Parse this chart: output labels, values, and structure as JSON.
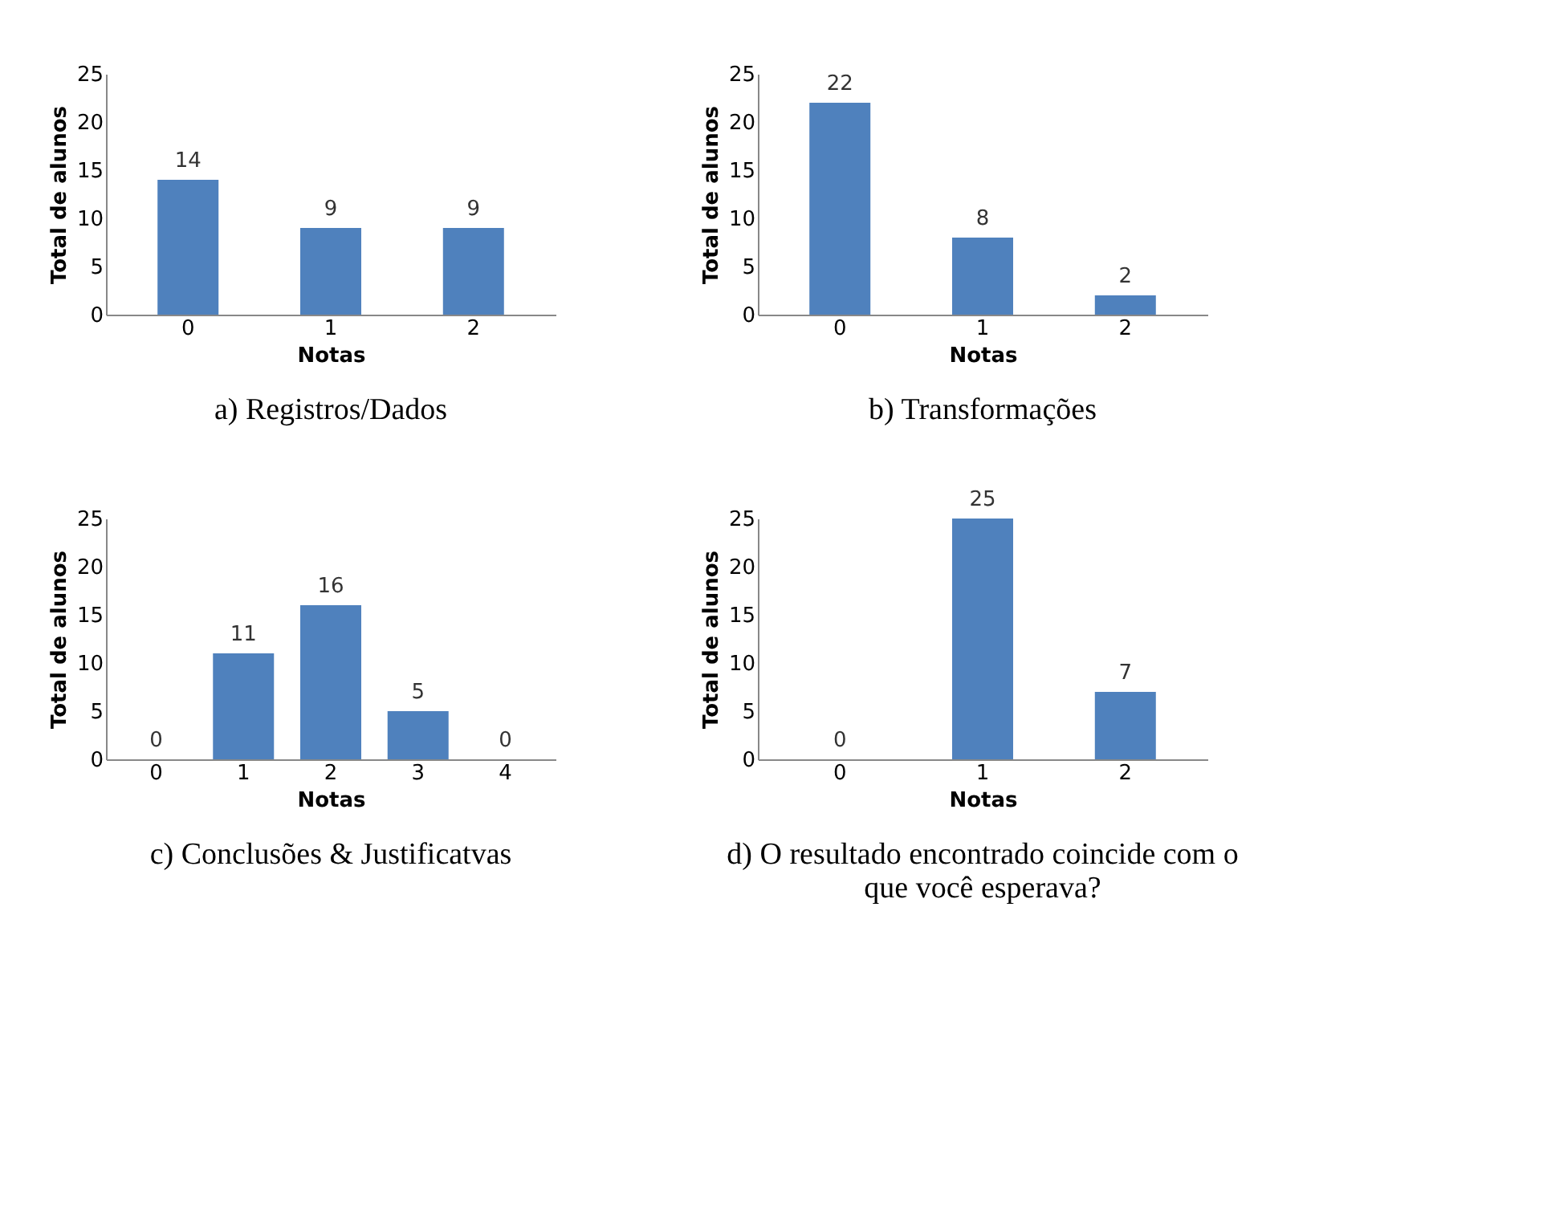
{
  "chart_data": [
    {
      "type": "bar",
      "title": "a) Registros/Dados",
      "xlabel": "Notas",
      "ylabel": "Total de alunos",
      "categories": [
        "0",
        "1",
        "2"
      ],
      "values": [
        14,
        9,
        9
      ],
      "color": "#4f81bd",
      "ylim": [
        0,
        25
      ],
      "yticks": [
        0,
        5,
        10,
        15,
        20,
        25
      ],
      "data_labels": true
    },
    {
      "type": "bar",
      "title": "b) Transformações",
      "xlabel": "Notas",
      "ylabel": "Total de alunos",
      "categories": [
        "0",
        "1",
        "2"
      ],
      "values": [
        22,
        8,
        2
      ],
      "color": "#4f81bd",
      "ylim": [
        0,
        25
      ],
      "yticks": [
        0,
        5,
        10,
        15,
        20,
        25
      ],
      "data_labels": true
    },
    {
      "type": "bar",
      "title": "c) Conclusões & Justificatvas",
      "xlabel": "Notas",
      "ylabel": "Total de alunos",
      "categories": [
        "0",
        "1",
        "2",
        "3",
        "4"
      ],
      "values": [
        0,
        11,
        16,
        5,
        0
      ],
      "color": "#4f81bd",
      "ylim": [
        0,
        25
      ],
      "yticks": [
        0,
        5,
        10,
        15,
        20,
        25
      ],
      "data_labels": true
    },
    {
      "type": "bar",
      "title": "d) O resultado encontrado coincide com o que você esperava?",
      "xlabel": "Notas",
      "ylabel": "Total de alunos",
      "categories": [
        "0",
        "1",
        "2"
      ],
      "values": [
        0,
        25,
        7
      ],
      "color": "#4f81bd",
      "ylim": [
        0,
        25
      ],
      "yticks": [
        0,
        5,
        10,
        15,
        20,
        25
      ],
      "data_labels": true
    }
  ]
}
